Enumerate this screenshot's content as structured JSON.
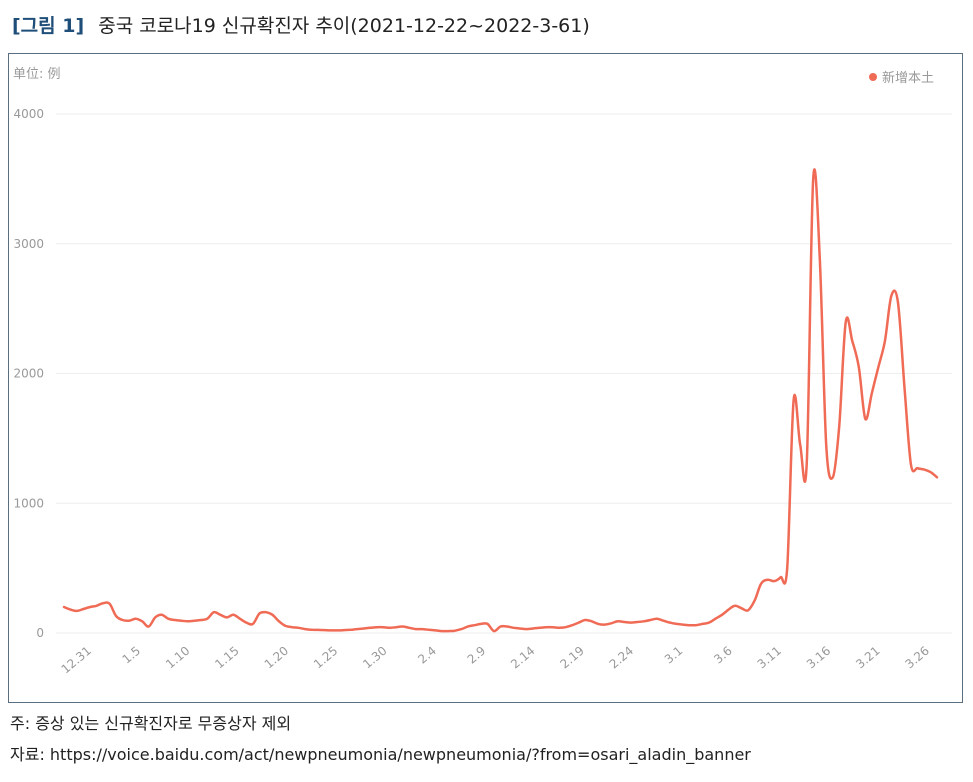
{
  "figure": {
    "label": "[그림 1]",
    "title": "중국 코로나19 신규확진자 추이(2021-12-22~2022-3-61)"
  },
  "notes": {
    "note": "주: 증상 있는 신규확진자로 무증상자 제외",
    "source": "자료: https://voice.baidu.com/act/newpneumonia/newpneumonia/?from=osari_aladin_banner"
  },
  "colors": {
    "line": "#f06b55",
    "grid": "#eeeeee",
    "axis_text": "#999999",
    "title_accent": "#1f4e79"
  },
  "chart_data": {
    "type": "line",
    "unit_label": "单位: 例",
    "legend_position": "top-right",
    "grid": true,
    "ylim": [
      0,
      4000
    ],
    "y_ticks": [
      "0",
      "1000",
      "2000",
      "3000",
      "4000"
    ],
    "x_tick_labels": [
      "12.31",
      "1.5",
      "1.10",
      "1.15",
      "1.20",
      "1.25",
      "1.30",
      "2.4",
      "2.9",
      "2.14",
      "2.19",
      "2.24",
      "3.1",
      "3.6",
      "3.11",
      "3.16",
      "3.21",
      "3.26"
    ],
    "x_start": "12.22",
    "series": [
      {
        "name": "新增本土",
        "values": [
          200,
          180,
          170,
          185,
          200,
          210,
          230,
          225,
          130,
          100,
          95,
          110,
          90,
          50,
          120,
          140,
          110,
          100,
          95,
          90,
          95,
          100,
          110,
          160,
          140,
          120,
          140,
          110,
          80,
          70,
          150,
          160,
          140,
          90,
          55,
          45,
          40,
          30,
          25,
          24,
          22,
          20,
          20,
          22,
          25,
          30,
          35,
          40,
          45,
          45,
          40,
          45,
          50,
          40,
          30,
          30,
          25,
          20,
          15,
          15,
          18,
          30,
          50,
          60,
          70,
          70,
          15,
          50,
          50,
          40,
          35,
          30,
          35,
          40,
          45,
          45,
          40,
          45,
          60,
          80,
          100,
          90,
          70,
          65,
          75,
          90,
          85,
          80,
          85,
          90,
          100,
          110,
          95,
          80,
          70,
          65,
          60,
          60,
          70,
          80,
          110,
          140,
          180,
          210,
          190,
          175,
          250,
          380,
          410,
          400,
          430,
          500,
          1800,
          1450,
          1300,
          3500,
          2900,
          1450,
          1200,
          1600,
          2400,
          2250,
          2050,
          1650,
          1850,
          2050,
          2250,
          2600,
          2550,
          1900,
          1300,
          1270,
          1260,
          1240,
          1200
        ]
      }
    ]
  }
}
